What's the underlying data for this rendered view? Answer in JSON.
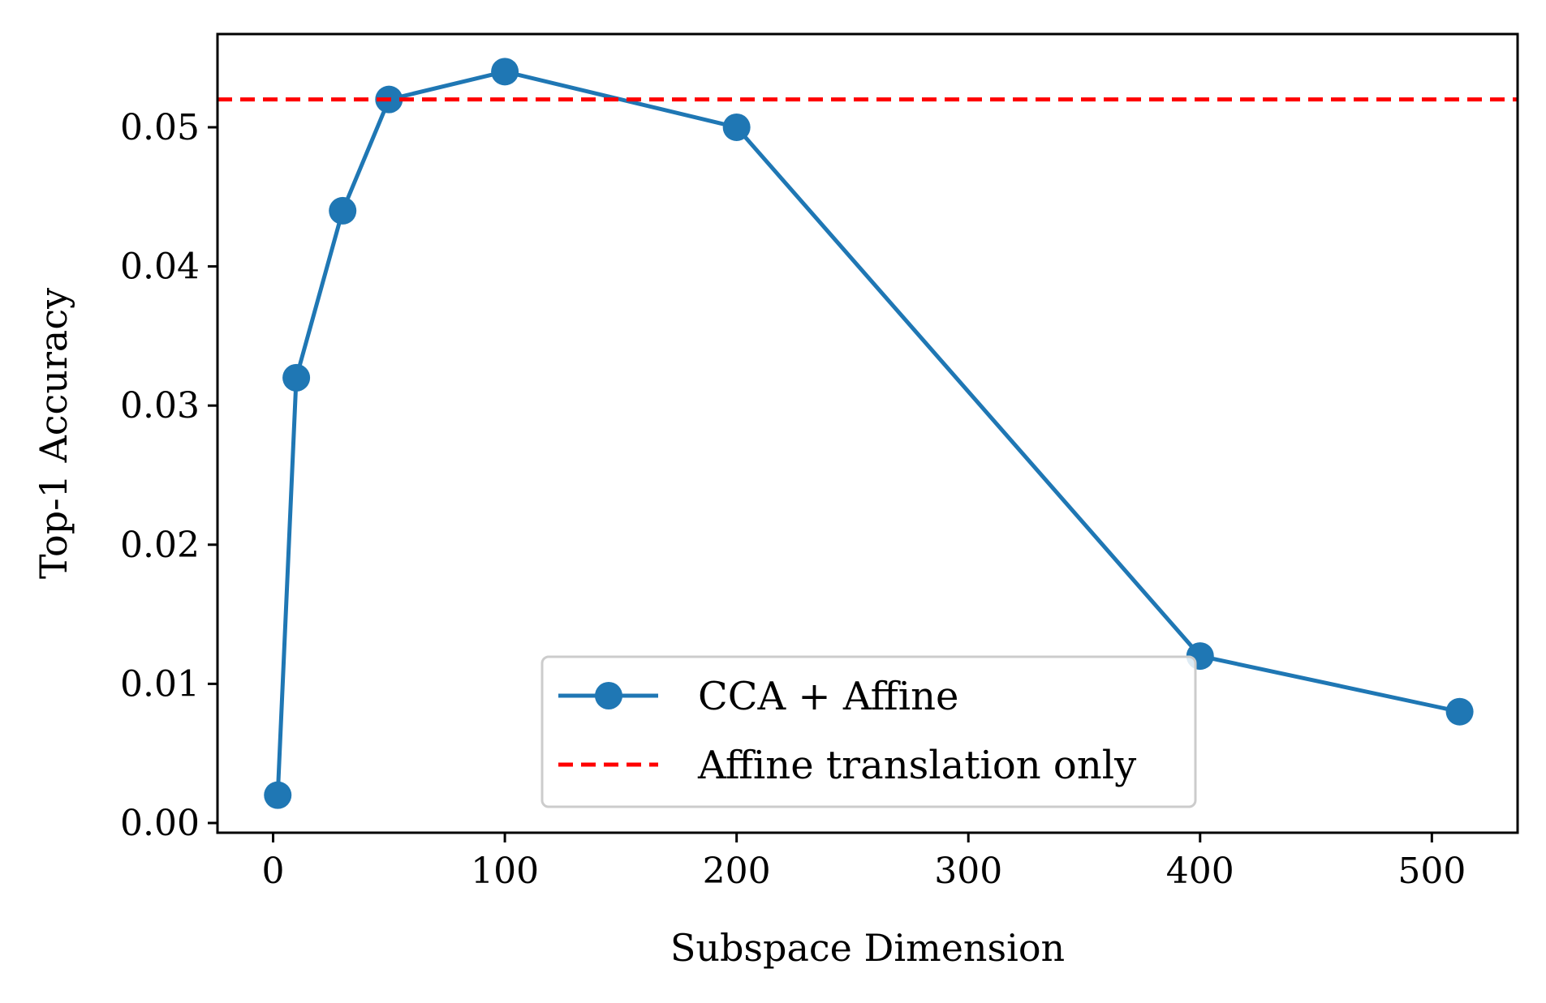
{
  "chart_data": {
    "type": "line",
    "title": "",
    "xlabel": "Subspace Dimension",
    "ylabel": "Top-1 Accuracy",
    "xlim": [
      -24,
      537
    ],
    "ylim": [
      -0.0007,
      0.0567
    ],
    "xticks": [
      0,
      100,
      200,
      300,
      400,
      500
    ],
    "xtick_labels": [
      "0",
      "100",
      "200",
      "300",
      "400",
      "500"
    ],
    "yticks": [
      0.0,
      0.01,
      0.02,
      0.03,
      0.04,
      0.05
    ],
    "ytick_labels": [
      "0.00",
      "0.01",
      "0.02",
      "0.03",
      "0.04",
      "0.05"
    ],
    "grid": false,
    "legend_position": "lower-right",
    "series": [
      {
        "name": "CCA + Affine",
        "style": "line-with-markers",
        "color": "#1f77b4",
        "x": [
          2,
          10,
          30,
          50,
          100,
          200,
          400,
          512
        ],
        "y": [
          0.002,
          0.032,
          0.044,
          0.052,
          0.054,
          0.05,
          0.012,
          0.008
        ]
      },
      {
        "name": "Affine translation only",
        "style": "dashed-horizontal",
        "color": "#ff0000",
        "y": 0.052
      }
    ]
  }
}
